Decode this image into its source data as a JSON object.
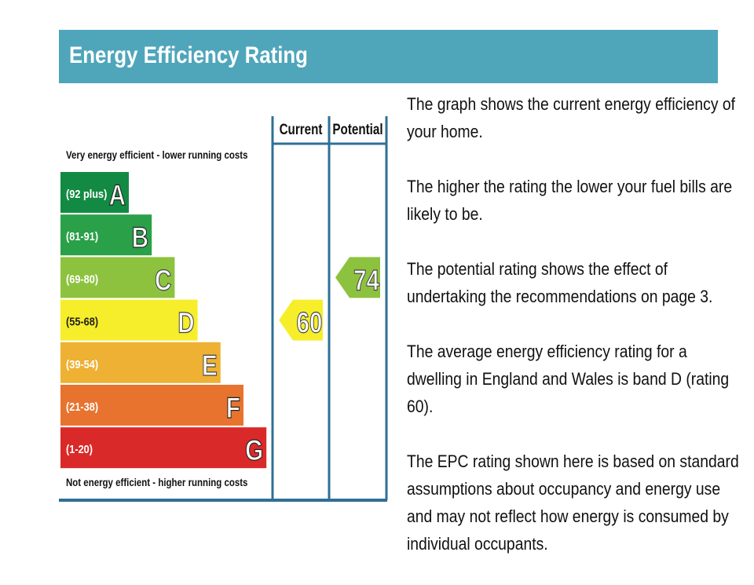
{
  "header": {
    "title": "Energy Efficiency Rating"
  },
  "chart_data": {
    "type": "bar",
    "title": "Energy Efficiency Rating",
    "columns": [
      "Current",
      "Potential"
    ],
    "top_note": "Very energy efficient - lower running costs",
    "bottom_note": "Not energy efficient - higher running costs",
    "bands": [
      {
        "letter": "A",
        "range": "(92 plus)",
        "color": "#138a43"
      },
      {
        "letter": "B",
        "range": "(81-91)",
        "color": "#2aa048"
      },
      {
        "letter": "C",
        "range": "(69-80)",
        "color": "#8dc23f"
      },
      {
        "letter": "D",
        "range": "(55-68)",
        "color": "#f6ee2a"
      },
      {
        "letter": "E",
        "range": "(39-54)",
        "color": "#eeb134"
      },
      {
        "letter": "F",
        "range": "(21-38)",
        "color": "#e8732f"
      },
      {
        "letter": "G",
        "range": "(1-20)",
        "color": "#da2929"
      }
    ],
    "current": {
      "value": 60,
      "band": "D",
      "color": "#f6ee2a"
    },
    "potential": {
      "value": 74,
      "band": "C",
      "color": "#8dc23f"
    },
    "frame_color": "#2f6f95"
  },
  "description": {
    "paragraphs": [
      "The graph shows the current energy efficiency of your home.",
      "The higher the rating the lower your fuel bills are likely to be.",
      "The potential rating shows the effect of undertaking the recommendations on page 3.",
      "The average energy efficiency rating for a dwelling in England and Wales is band D (rating 60).",
      "The EPC rating shown here is based on standard assumptions about occupancy and energy use and may not reflect how energy is consumed by individual occupants."
    ]
  }
}
